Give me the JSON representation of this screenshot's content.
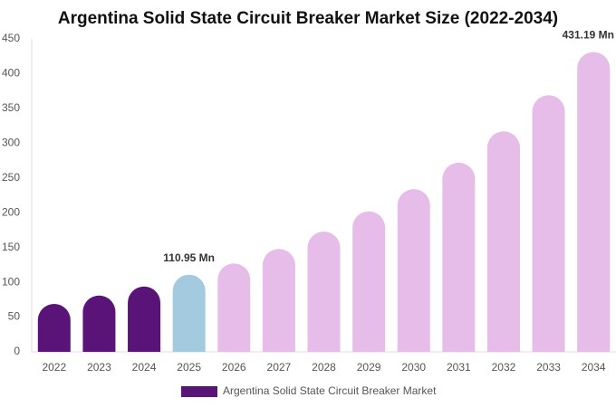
{
  "chart_data": {
    "type": "bar",
    "title": "Argentina Solid State Circuit Breaker Market Size (2022-2034)",
    "categories": [
      "2022",
      "2023",
      "2024",
      "2025",
      "2026",
      "2027",
      "2028",
      "2029",
      "2030",
      "2031",
      "2032",
      "2033",
      "2034"
    ],
    "series": [
      {
        "name": "Argentina Solid State Circuit Breaker Market",
        "color": "#5a1478",
        "colors": [
          "#5a1478",
          "#5a1478",
          "#5a1478",
          "#a4cadf",
          "#e6bce8",
          "#e6bce8",
          "#e6bce8",
          "#e6bce8",
          "#e6bce8",
          "#e6bce8",
          "#e6bce8",
          "#e6bce8",
          "#e6bce8"
        ],
        "values": [
          69,
          81,
          94,
          110.95,
          127,
          148,
          173,
          202,
          234,
          272,
          317,
          369,
          431.19
        ],
        "value_labels": [
          null,
          null,
          null,
          "110.95 Mn",
          null,
          null,
          null,
          null,
          null,
          null,
          null,
          null,
          "431.19 Mn"
        ]
      }
    ],
    "ylim": [
      0,
      450
    ],
    "yticks": [
      0,
      50,
      100,
      150,
      200,
      250,
      300,
      350,
      400,
      450
    ]
  }
}
